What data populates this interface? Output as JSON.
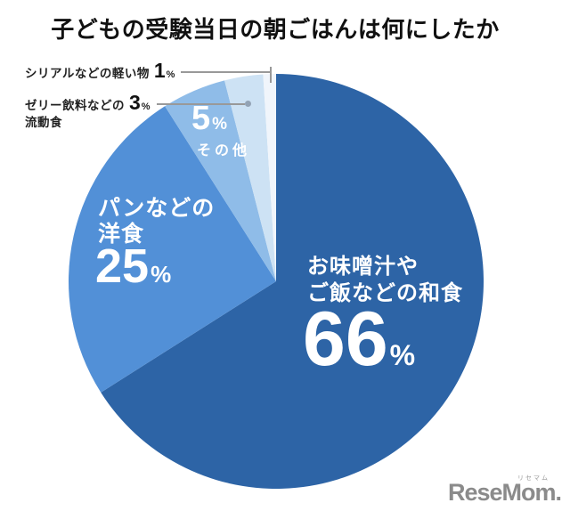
{
  "title": "子どもの受験当日の朝ごはんは何にしたか",
  "chart_data": {
    "type": "pie",
    "title": "子どもの受験当日の朝ごはんは何にしたか",
    "unit": "%",
    "direction": "clockwise",
    "start_angle": "12-oclock",
    "legend": "none",
    "labels_on_chart": true,
    "slices": [
      {
        "label": "お味噌汁やご飯などの和食",
        "value": 66,
        "color": "#2d64a6"
      },
      {
        "label": "パンなどの洋食",
        "value": 25,
        "color": "#5290d7"
      },
      {
        "label": "その他",
        "value": 5,
        "color": "#8fbce8"
      },
      {
        "label": "ゼリー飲料などの流動食",
        "value": 3,
        "color": "#cde2f4"
      },
      {
        "label": "シリアルなどの軽い物",
        "value": 1,
        "color": "#f0f5fb"
      }
    ]
  },
  "callouts": {
    "cereal": {
      "label": "シリアルなどの軽い物",
      "value": "1",
      "unit": "%"
    },
    "jelly": {
      "label_line1": "ゼリー飲料などの",
      "label_line2": "流動食",
      "value": "3",
      "unit": "%"
    }
  },
  "inside_labels": {
    "other": {
      "value": "5",
      "unit": "%",
      "caption": "その他"
    },
    "yoshoku": {
      "line1": "パンなどの",
      "line2": "洋食",
      "value": "25",
      "unit": "%"
    },
    "wafoku": {
      "line1": "お味噌汁や",
      "line2": "ご飯などの和食",
      "value": "66",
      "unit": "%"
    }
  },
  "watermark": {
    "text": "ReseMom.",
    "ruby": "リセマム"
  },
  "colors": {
    "background": "#ffffff",
    "title_text": "#111111",
    "callout_text": "#222222",
    "leader_line": "#999999",
    "inside_label_text": "#ffffff",
    "watermark": "#8b8b8b"
  }
}
